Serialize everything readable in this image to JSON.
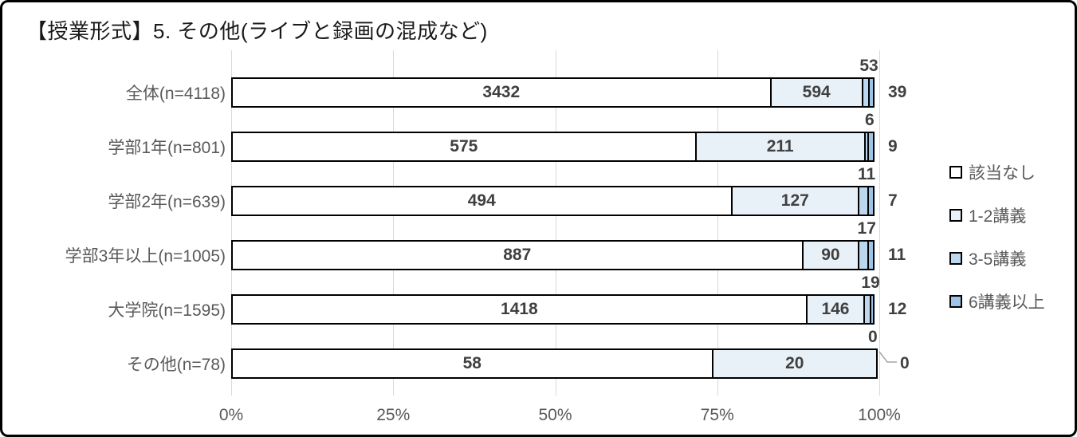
{
  "title": "【授業形式】5. その他(ライブと録画の混成など)",
  "chart_data": {
    "type": "bar",
    "subtype": "100%-stacked-horizontal",
    "title": "【授業形式】5. その他(ライブと録画の混成など)",
    "categories": [
      "全体(n=4118)",
      "学部1年(n=801)",
      "学部2年(n=639)",
      "学部3年以上(n=1005)",
      "大学院(n=1595)",
      "その他(n=78)"
    ],
    "series": [
      {
        "name": "該当なし",
        "color": "#ffffff",
        "values": [
          3432,
          575,
          494,
          887,
          1418,
          58
        ]
      },
      {
        "name": "1-2講義",
        "color": "#e9f1f8",
        "values": [
          594,
          211,
          127,
          90,
          146,
          20
        ]
      },
      {
        "name": "3-5講義",
        "color": "#bdd7ee",
        "values": [
          53,
          6,
          11,
          17,
          19,
          0
        ]
      },
      {
        "name": "6講義以上",
        "color": "#9dc3e6",
        "values": [
          39,
          9,
          7,
          11,
          12,
          0
        ]
      }
    ],
    "totals": [
      4118,
      801,
      639,
      1005,
      1595,
      78
    ],
    "x_axis": {
      "tick_labels": [
        "0%",
        "25%",
        "50%",
        "75%",
        "100%"
      ],
      "range_percent": [
        0,
        100
      ],
      "grid": true
    },
    "legend_position": "right",
    "value_label_color": "#404040",
    "category_label_color": "#595959",
    "gridline_color": "#d9d9d9",
    "bar_border_color": "#000000",
    "leader_line_color": "#a6a6a6"
  }
}
